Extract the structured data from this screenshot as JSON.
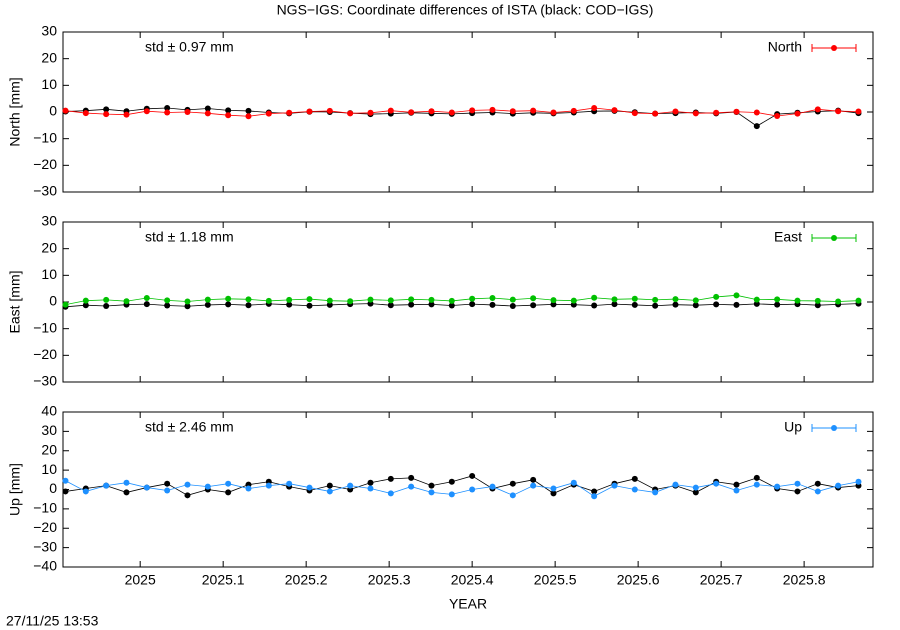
{
  "title": "NGS−IGS: Coordinate differences of ISTA (black: COD−IGS)",
  "timestamp": "27/11/25 13:53",
  "chart_data": [
    {
      "type": "scatter",
      "ylabel": "North [mm]",
      "annotation": "std ± 0.97 mm",
      "legend": "top-right",
      "xlim": [
        2024.907,
        2025.883
      ],
      "ylim": [
        -30,
        30
      ],
      "yticks": [
        {
          "value": -30,
          "label": "−30"
        },
        {
          "value": -20,
          "label": "−20"
        },
        {
          "value": -10,
          "label": "−10"
        },
        0,
        10,
        20,
        30
      ],
      "x": [
        2024.91,
        2024.9345,
        2024.959,
        2024.9835,
        2025.008,
        2025.0325,
        2025.057,
        2025.0815,
        2025.106,
        2025.1305,
        2025.155,
        2025.1795,
        2025.204,
        2025.2285,
        2025.253,
        2025.2775,
        2025.302,
        2025.3265,
        2025.351,
        2025.3755,
        2025.4,
        2025.4245,
        2025.449,
        2025.4735,
        2025.498,
        2025.5225,
        2025.547,
        2025.5715,
        2025.596,
        2025.6205,
        2025.645,
        2025.6695,
        2025.694,
        2025.7185,
        2025.743,
        2025.7675,
        2025.792,
        2025.8165,
        2025.841,
        2025.8655
      ],
      "series": [
        {
          "color": "#000000",
          "values": [
            0.2,
            0.5,
            1.0,
            0.3,
            1.2,
            1.5,
            0.8,
            1.3,
            0.6,
            0.4,
            -0.2,
            -0.5,
            0.1,
            0.0,
            -0.4,
            -0.8,
            -0.6,
            -0.3,
            -0.5,
            -0.7,
            -0.4,
            -0.2,
            -0.6,
            -0.3,
            -0.5,
            -0.2,
            0.3,
            0.4,
            -0.1,
            -0.6,
            -0.4,
            -0.2,
            -0.5,
            0.0,
            -5.3,
            -0.8,
            -0.3,
            0.2,
            0.5,
            -0.4
          ]
        },
        {
          "name": "North",
          "color": "#ff0000",
          "values": [
            0.5,
            -0.4,
            -0.8,
            -1.0,
            0.3,
            -0.2,
            0.0,
            -0.5,
            -1.2,
            -1.6,
            -0.6,
            -0.3,
            0.2,
            0.4,
            -0.5,
            -0.3,
            0.5,
            -0.1,
            0.3,
            -0.2,
            0.6,
            0.8,
            0.3,
            0.5,
            -0.2,
            0.4,
            1.5,
            0.7,
            -0.4,
            -0.6,
            0.2,
            -0.5,
            -0.3,
            0.1,
            -0.2,
            -1.5,
            -0.6,
            1.0,
            0.3,
            0.2
          ]
        }
      ]
    },
    {
      "type": "scatter",
      "ylabel": "East [mm]",
      "annotation": "std ± 1.18 mm",
      "legend": "top-right",
      "xlim": [
        2024.907,
        2025.883
      ],
      "ylim": [
        -30,
        30
      ],
      "yticks": [
        {
          "value": -30,
          "label": "−30"
        },
        {
          "value": -20,
          "label": "−20"
        },
        {
          "value": -10,
          "label": "−10"
        },
        0,
        10,
        20,
        30
      ],
      "x": [
        2024.91,
        2024.9345,
        2024.959,
        2024.9835,
        2025.008,
        2025.0325,
        2025.057,
        2025.0815,
        2025.106,
        2025.1305,
        2025.155,
        2025.1795,
        2025.204,
        2025.2285,
        2025.253,
        2025.2775,
        2025.302,
        2025.3265,
        2025.351,
        2025.3755,
        2025.4,
        2025.4245,
        2025.449,
        2025.4735,
        2025.498,
        2025.5225,
        2025.547,
        2025.5715,
        2025.596,
        2025.6205,
        2025.645,
        2025.6695,
        2025.694,
        2025.7185,
        2025.743,
        2025.7675,
        2025.792,
        2025.8165,
        2025.841,
        2025.8655
      ],
      "series": [
        {
          "color": "#000000",
          "values": [
            -1.8,
            -1.2,
            -1.5,
            -1.0,
            -0.8,
            -1.3,
            -1.6,
            -1.1,
            -0.9,
            -1.2,
            -0.7,
            -1.0,
            -1.4,
            -1.1,
            -0.8,
            -0.6,
            -1.2,
            -1.0,
            -0.9,
            -1.3,
            -0.8,
            -1.1,
            -1.5,
            -1.2,
            -0.9,
            -1.0,
            -1.3,
            -0.8,
            -1.1,
            -1.4,
            -1.0,
            -1.2,
            -0.9,
            -1.1,
            -0.7,
            -1.0,
            -0.8,
            -1.2,
            -0.9,
            -0.6
          ]
        },
        {
          "name": "East",
          "color": "#00c000",
          "values": [
            -1.0,
            0.5,
            0.8,
            0.3,
            1.5,
            0.6,
            0.2,
            0.9,
            1.2,
            1.0,
            0.4,
            0.8,
            1.1,
            0.5,
            0.3,
            0.9,
            0.6,
            1.0,
            0.8,
            0.4,
            1.2,
            1.5,
            0.9,
            1.4,
            0.7,
            0.5,
            1.6,
            1.0,
            1.2,
            0.8,
            1.1,
            0.6,
            1.9,
            2.5,
            0.9,
            1.0,
            0.5,
            0.4,
            0.2,
            0.5
          ]
        }
      ]
    },
    {
      "type": "scatter",
      "ylabel": "Up [mm]",
      "annotation": "std ± 2.46 mm",
      "legend": "top-right",
      "xlabel": "YEAR",
      "xlim": [
        2024.907,
        2025.883
      ],
      "ylim": [
        -40,
        40
      ],
      "yticks": [
        {
          "value": -40,
          "label": "−40"
        },
        {
          "value": -30,
          "label": "−30"
        },
        {
          "value": -20,
          "label": "−20"
        },
        {
          "value": -10,
          "label": "−10"
        },
        0,
        10,
        20,
        30,
        40
      ],
      "xticks": [
        2025,
        2025.1,
        2025.2,
        2025.3,
        2025.4,
        2025.5,
        2025.6,
        2025.7,
        2025.8
      ],
      "x": [
        2024.91,
        2024.9345,
        2024.959,
        2024.9835,
        2025.008,
        2025.0325,
        2025.057,
        2025.0815,
        2025.106,
        2025.1305,
        2025.155,
        2025.1795,
        2025.204,
        2025.2285,
        2025.253,
        2025.2775,
        2025.302,
        2025.3265,
        2025.351,
        2025.3755,
        2025.4,
        2025.4245,
        2025.449,
        2025.4735,
        2025.498,
        2025.5225,
        2025.547,
        2025.5715,
        2025.596,
        2025.6205,
        2025.645,
        2025.6695,
        2025.694,
        2025.7185,
        2025.743,
        2025.7675,
        2025.792,
        2025.8165,
        2025.841,
        2025.8655
      ],
      "series": [
        {
          "color": "#000000",
          "values": [
            -1.0,
            0.5,
            2.0,
            -1.5,
            1.0,
            3.0,
            -3.0,
            0.0,
            -1.5,
            2.5,
            4.0,
            1.5,
            -0.5,
            2.0,
            0.0,
            3.5,
            5.5,
            6.0,
            2.0,
            4.0,
            7.0,
            0.5,
            3.0,
            5.0,
            -2.0,
            2.5,
            -1.0,
            3.0,
            5.5,
            0.0,
            2.0,
            -1.5,
            4.0,
            2.5,
            6.0,
            0.5,
            -1.0,
            3.0,
            1.0,
            2.0
          ]
        },
        {
          "name": "Up",
          "color": "#1e90ff",
          "values": [
            4.5,
            -1.0,
            2.0,
            3.5,
            1.0,
            -0.5,
            2.5,
            1.5,
            3.0,
            0.5,
            2.0,
            3.0,
            1.0,
            -1.0,
            2.0,
            0.5,
            -2.0,
            1.5,
            -1.5,
            -2.5,
            0.0,
            1.5,
            -3.0,
            2.0,
            0.5,
            3.5,
            -3.5,
            2.0,
            0.0,
            -1.5,
            2.5,
            1.0,
            3.0,
            -0.5,
            2.5,
            1.5,
            3.0,
            -1.0,
            2.0,
            4.0
          ]
        }
      ]
    }
  ]
}
